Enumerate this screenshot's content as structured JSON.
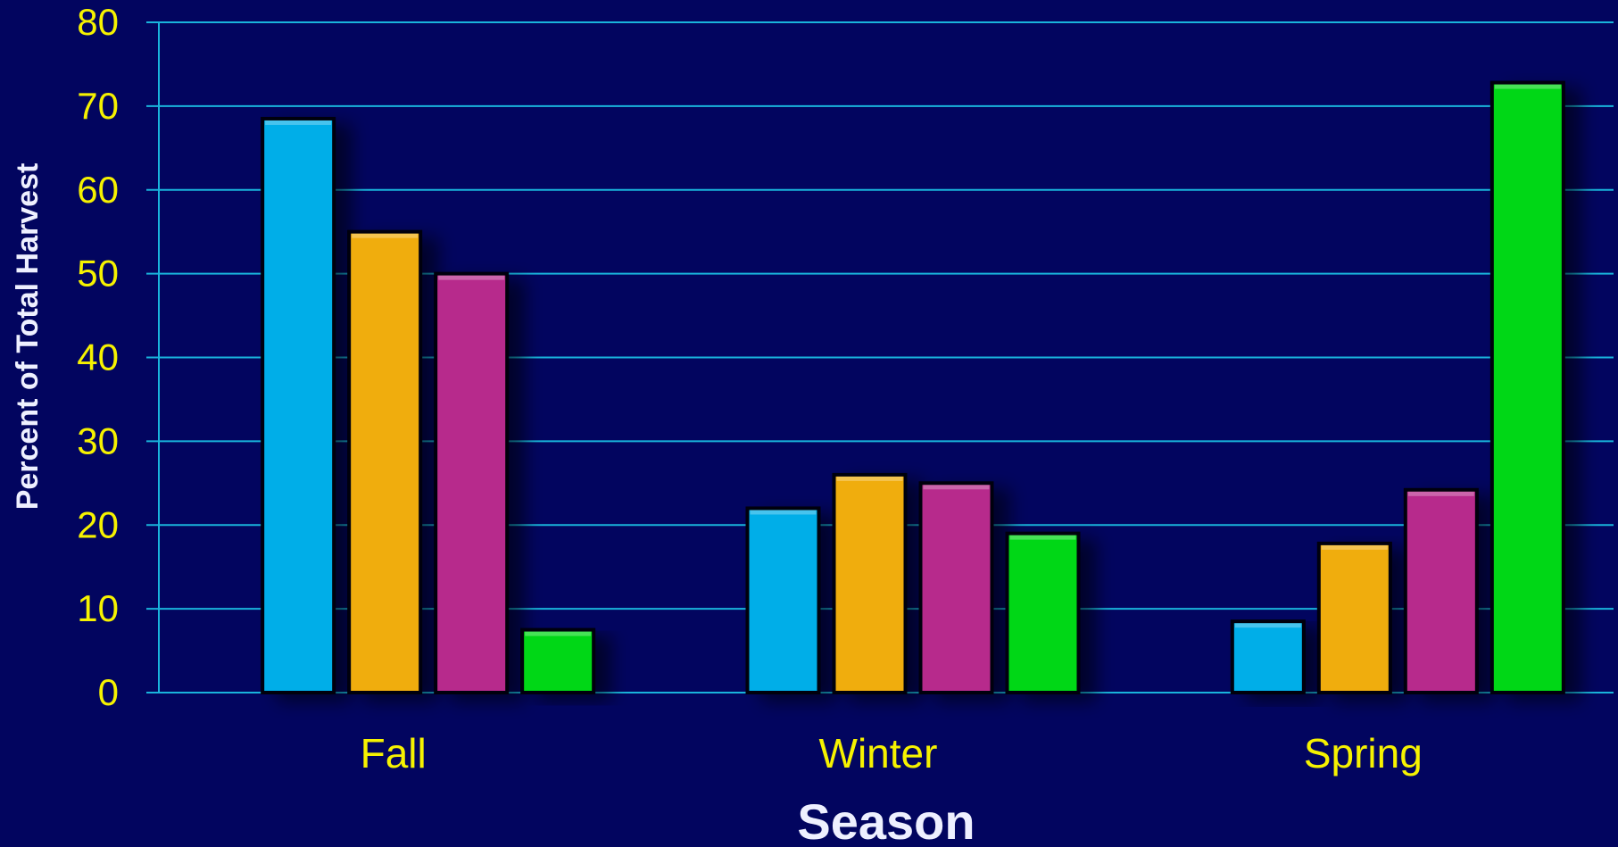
{
  "chart_data": {
    "type": "bar",
    "title": "",
    "xlabel": "Season",
    "ylabel": "Percent of Total Harvest",
    "categories": [
      "Fall",
      "Winter",
      "Spring"
    ],
    "ylim": [
      0,
      80
    ],
    "yticks": [
      0,
      10,
      20,
      30,
      40,
      50,
      60,
      70,
      80
    ],
    "yticks_text": [
      "0",
      "10",
      "20",
      "30",
      "40",
      "50",
      "60",
      "70",
      "80"
    ],
    "grid": true,
    "legend": "none",
    "series": [
      {
        "color": "#00aee8",
        "values": [
          68.5,
          22.0,
          8.5
        ]
      },
      {
        "color": "#f0ad0c",
        "values": [
          55.0,
          26.0,
          17.8
        ]
      },
      {
        "color": "#b72c8c",
        "values": [
          50.0,
          25.0,
          24.2
        ]
      },
      {
        "color": "#04d715",
        "values": [
          7.5,
          19.0,
          72.8
        ]
      }
    ]
  },
  "colors": {
    "background": "#02055f",
    "gridline": "#19b4dc",
    "tick_text": "#f6f200",
    "title_text": "#eef0ff"
  }
}
